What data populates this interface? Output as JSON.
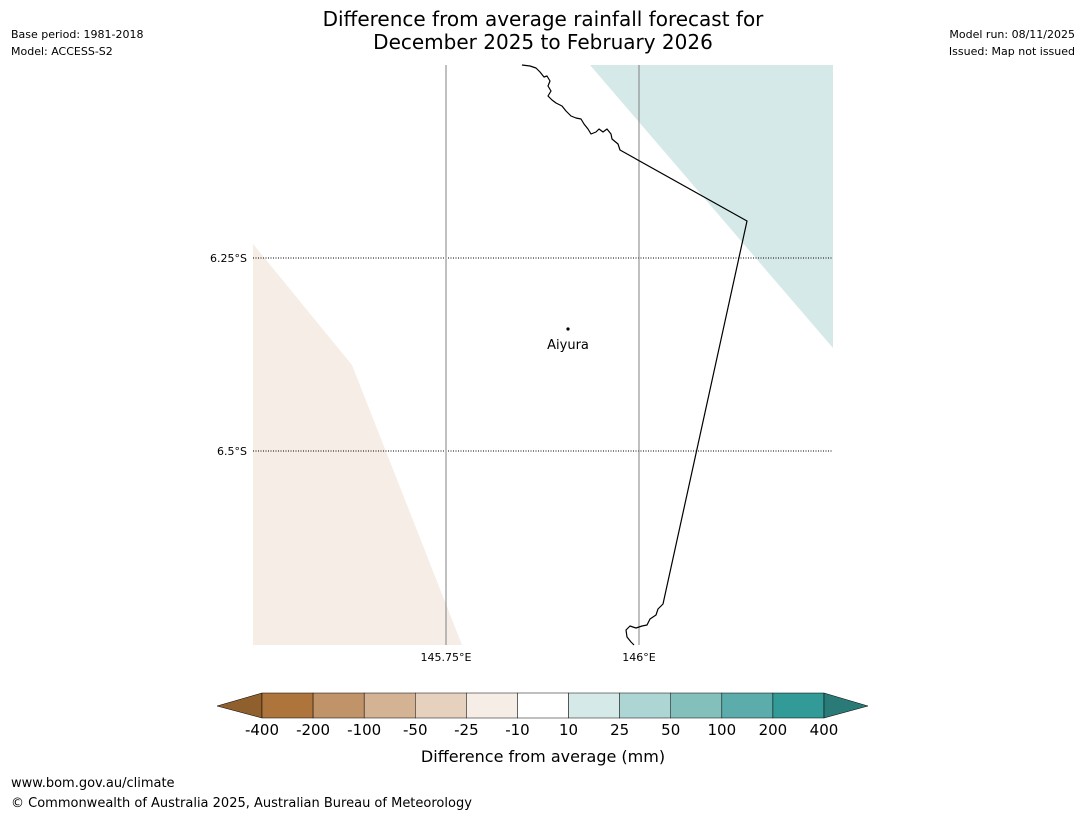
{
  "header": {
    "title_line1": "Difference from average rainfall forecast for",
    "title_line2": "December 2025 to February 2026",
    "base_period": "Base period: 1981-2018",
    "model": "Model: ACCESS-S2",
    "model_run": "Model run: 08/11/2025",
    "issued": "Issued: Map not issued"
  },
  "map": {
    "lat_labels": [
      "6.25°S",
      "6.5°S"
    ],
    "lon_labels": [
      "145.75°E",
      "146°E"
    ],
    "place": {
      "name": "Aiyura"
    },
    "region_colors": {
      "drier": "#f5ede6",
      "wetter": "#d5e9e8",
      "coastline": "#000000",
      "meridian": "#808080"
    }
  },
  "colorbar": {
    "title": "Difference from average (mm)",
    "ticks": [
      "-400",
      "-200",
      "-100",
      "-50",
      "-25",
      "-10",
      "10",
      "25",
      "50",
      "100",
      "200",
      "400"
    ],
    "under_color": "#8f5f2e",
    "over_color": "#2a7b78",
    "colors": [
      "#ad743c",
      "#c19368",
      "#d3b393",
      "#e6d1bf",
      "#f5ede6",
      "#ffffff",
      "#d5e9e8",
      "#acd5d3",
      "#83c0bc",
      "#5bacaa",
      "#329b98"
    ]
  },
  "footer": {
    "url": "www.bom.gov.au/climate",
    "copyright": "© Commonwealth of Australia 2025, Australian Bureau of Meteorology"
  }
}
